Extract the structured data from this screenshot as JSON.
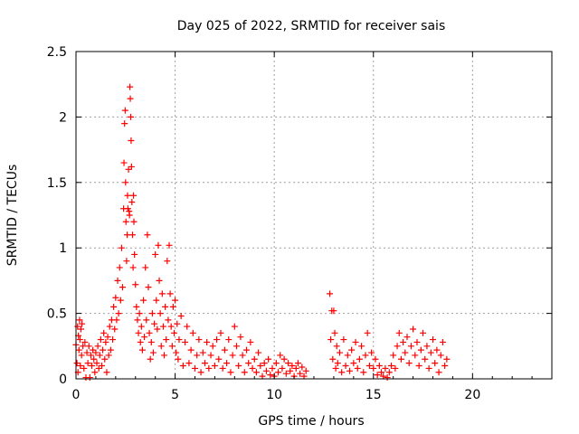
{
  "chart_data": {
    "type": "scatter",
    "title": "Day 025 of 2022, SRMTID for receiver sais",
    "xlabel": "GPS time / hours",
    "ylabel": "SRMTID / TECUs",
    "xlim": [
      0,
      24
    ],
    "ylim": [
      0,
      2.5
    ],
    "xticks": [
      0,
      5,
      10,
      15,
      20
    ],
    "xtick_labels": [
      "0",
      "5",
      "10",
      "15",
      "20"
    ],
    "yticks": [
      0,
      0.5,
      1,
      1.5,
      2,
      2.5
    ],
    "ytick_labels": [
      "0",
      "0.5",
      "1",
      "1.5",
      "2",
      "2.5"
    ],
    "grid": true,
    "series": [
      {
        "name": "SRMTID",
        "marker": "+",
        "color": "#ff0000",
        "points": [
          [
            0.0,
            0.26
          ],
          [
            0.05,
            0.12
          ],
          [
            0.08,
            0.4
          ],
          [
            0.1,
            0.05
          ],
          [
            0.12,
            0.33
          ],
          [
            0.15,
            0.22
          ],
          [
            0.18,
            0.45
          ],
          [
            0.2,
            0.3
          ],
          [
            0.22,
            0.1
          ],
          [
            0.25,
            0.38
          ],
          [
            0.28,
            0.18
          ],
          [
            0.3,
            0.42
          ],
          [
            0.35,
            0.25
          ],
          [
            0.4,
            0.08
          ],
          [
            0.45,
            0.28
          ],
          [
            0.5,
            0.01
          ],
          [
            0.55,
            0.2
          ],
          [
            0.6,
            0.12
          ],
          [
            0.65,
            0.25
          ],
          [
            0.7,
            0.01
          ],
          [
            0.75,
            0.18
          ],
          [
            0.8,
            0.1
          ],
          [
            0.85,
            0.22
          ],
          [
            0.9,
            0.15
          ],
          [
            0.95,
            0.05
          ],
          [
            1.0,
            0.2
          ],
          [
            1.05,
            0.12
          ],
          [
            1.1,
            0.25
          ],
          [
            1.15,
            0.08
          ],
          [
            1.2,
            0.18
          ],
          [
            1.25,
            0.3
          ],
          [
            1.3,
            0.1
          ],
          [
            1.35,
            0.22
          ],
          [
            1.4,
            0.35
          ],
          [
            1.45,
            0.15
          ],
          [
            1.5,
            0.28
          ],
          [
            1.55,
            0.05
          ],
          [
            1.6,
            0.32
          ],
          [
            1.65,
            0.18
          ],
          [
            1.7,
            0.4
          ],
          [
            1.75,
            0.22
          ],
          [
            1.8,
            0.45
          ],
          [
            1.85,
            0.3
          ],
          [
            1.9,
            0.55
          ],
          [
            1.95,
            0.38
          ],
          [
            2.0,
            0.62
          ],
          [
            2.05,
            0.45
          ],
          [
            2.1,
            0.75
          ],
          [
            2.15,
            0.5
          ],
          [
            2.2,
            0.85
          ],
          [
            2.25,
            0.6
          ],
          [
            2.3,
            1.0
          ],
          [
            2.35,
            0.7
          ],
          [
            2.4,
            1.3
          ],
          [
            2.42,
            1.65
          ],
          [
            2.45,
            1.95
          ],
          [
            2.48,
            2.05
          ],
          [
            2.5,
            1.5
          ],
          [
            2.52,
            1.2
          ],
          [
            2.55,
            0.9
          ],
          [
            2.58,
            1.1
          ],
          [
            2.6,
            1.4
          ],
          [
            2.62,
            1.3
          ],
          [
            2.65,
            1.6
          ],
          [
            2.68,
            1.28
          ],
          [
            2.7,
            1.25
          ],
          [
            2.72,
            2.23
          ],
          [
            2.74,
            2.14
          ],
          [
            2.76,
            2.0
          ],
          [
            2.78,
            1.82
          ],
          [
            2.8,
            1.62
          ],
          [
            2.82,
            1.35
          ],
          [
            2.85,
            1.1
          ],
          [
            2.88,
            0.85
          ],
          [
            2.9,
            1.4
          ],
          [
            2.92,
            1.2
          ],
          [
            2.95,
            0.95
          ],
          [
            3.0,
            0.72
          ],
          [
            3.05,
            0.55
          ],
          [
            3.1,
            0.45
          ],
          [
            3.15,
            0.35
          ],
          [
            3.2,
            0.5
          ],
          [
            3.25,
            0.28
          ],
          [
            3.3,
            0.4
          ],
          [
            3.35,
            0.22
          ],
          [
            3.4,
            0.6
          ],
          [
            3.45,
            0.32
          ],
          [
            3.5,
            0.85
          ],
          [
            3.55,
            0.45
          ],
          [
            3.6,
            1.1
          ],
          [
            3.65,
            0.7
          ],
          [
            3.7,
            0.35
          ],
          [
            3.75,
            0.15
          ],
          [
            3.8,
            0.28
          ],
          [
            3.85,
            0.5
          ],
          [
            3.9,
            0.2
          ],
          [
            3.95,
            0.42
          ],
          [
            4.0,
            0.95
          ],
          [
            4.05,
            0.6
          ],
          [
            4.1,
            0.38
          ],
          [
            4.15,
            1.02
          ],
          [
            4.2,
            0.75
          ],
          [
            4.25,
            0.5
          ],
          [
            4.3,
            0.25
          ],
          [
            4.35,
            0.65
          ],
          [
            4.4,
            0.4
          ],
          [
            4.45,
            0.18
          ],
          [
            4.5,
            0.55
          ],
          [
            4.55,
            0.3
          ],
          [
            4.6,
            0.9
          ],
          [
            4.65,
            0.45
          ],
          [
            4.7,
            1.02
          ],
          [
            4.75,
            0.65
          ],
          [
            4.8,
            0.4
          ],
          [
            4.85,
            0.25
          ],
          [
            4.9,
            0.55
          ],
          [
            4.95,
            0.35
          ],
          [
            5.0,
            0.6
          ],
          [
            5.05,
            0.2
          ],
          [
            5.1,
            0.42
          ],
          [
            5.15,
            0.15
          ],
          [
            5.2,
            0.3
          ],
          [
            5.3,
            0.48
          ],
          [
            5.4,
            0.1
          ],
          [
            5.5,
            0.28
          ],
          [
            5.6,
            0.4
          ],
          [
            5.7,
            0.12
          ],
          [
            5.8,
            0.22
          ],
          [
            5.9,
            0.35
          ],
          [
            6.0,
            0.08
          ],
          [
            6.1,
            0.18
          ],
          [
            6.2,
            0.3
          ],
          [
            6.3,
            0.05
          ],
          [
            6.4,
            0.2
          ],
          [
            6.5,
            0.12
          ],
          [
            6.6,
            0.28
          ],
          [
            6.7,
            0.08
          ],
          [
            6.8,
            0.18
          ],
          [
            6.9,
            0.25
          ],
          [
            7.0,
            0.1
          ],
          [
            7.1,
            0.3
          ],
          [
            7.2,
            0.15
          ],
          [
            7.3,
            0.35
          ],
          [
            7.4,
            0.08
          ],
          [
            7.5,
            0.22
          ],
          [
            7.6,
            0.12
          ],
          [
            7.7,
            0.3
          ],
          [
            7.8,
            0.05
          ],
          [
            7.9,
            0.18
          ],
          [
            8.0,
            0.4
          ],
          [
            8.1,
            0.25
          ],
          [
            8.2,
            0.1
          ],
          [
            8.3,
            0.32
          ],
          [
            8.4,
            0.18
          ],
          [
            8.5,
            0.05
          ],
          [
            8.6,
            0.22
          ],
          [
            8.7,
            0.12
          ],
          [
            8.8,
            0.28
          ],
          [
            8.9,
            0.08
          ],
          [
            9.0,
            0.15
          ],
          [
            9.1,
            0.05
          ],
          [
            9.2,
            0.2
          ],
          [
            9.3,
            0.1
          ],
          [
            9.4,
            0.02
          ],
          [
            9.5,
            0.12
          ],
          [
            9.6,
            0.06
          ],
          [
            9.7,
            0.15
          ],
          [
            9.8,
            0.03
          ],
          [
            9.9,
            0.08
          ],
          [
            10.0,
            0.02
          ],
          [
            10.1,
            0.12
          ],
          [
            10.2,
            0.05
          ],
          [
            10.3,
            0.18
          ],
          [
            10.4,
            0.08
          ],
          [
            10.5,
            0.15
          ],
          [
            10.6,
            0.04
          ],
          [
            10.7,
            0.12
          ],
          [
            10.8,
            0.06
          ],
          [
            10.9,
            0.1
          ],
          [
            11.0,
            0.02
          ],
          [
            11.1,
            0.08
          ],
          [
            11.2,
            0.12
          ],
          [
            11.3,
            0.04
          ],
          [
            11.4,
            0.09
          ],
          [
            11.5,
            0.02
          ],
          [
            11.6,
            0.06
          ],
          [
            12.8,
            0.65
          ],
          [
            12.85,
            0.3
          ],
          [
            12.9,
            0.52
          ],
          [
            12.95,
            0.15
          ],
          [
            13.0,
            0.52
          ],
          [
            13.05,
            0.35
          ],
          [
            13.1,
            0.08
          ],
          [
            13.15,
            0.25
          ],
          [
            13.2,
            0.12
          ],
          [
            13.3,
            0.2
          ],
          [
            13.4,
            0.05
          ],
          [
            13.5,
            0.3
          ],
          [
            13.6,
            0.1
          ],
          [
            13.7,
            0.18
          ],
          [
            13.8,
            0.06
          ],
          [
            13.9,
            0.22
          ],
          [
            14.0,
            0.12
          ],
          [
            14.1,
            0.28
          ],
          [
            14.2,
            0.08
          ],
          [
            14.3,
            0.15
          ],
          [
            14.4,
            0.25
          ],
          [
            14.5,
            0.05
          ],
          [
            14.6,
            0.18
          ],
          [
            14.7,
            0.35
          ],
          [
            14.8,
            0.1
          ],
          [
            14.9,
            0.2
          ],
          [
            15.0,
            0.08
          ],
          [
            15.1,
            0.15
          ],
          [
            15.2,
            0.03
          ],
          [
            15.3,
            0.1
          ],
          [
            15.4,
            0.05
          ],
          [
            15.5,
            0.02
          ],
          [
            15.6,
            0.08
          ],
          [
            15.7,
            0.01
          ],
          [
            15.8,
            0.05
          ],
          [
            15.9,
            0.1
          ],
          [
            16.0,
            0.18
          ],
          [
            16.1,
            0.08
          ],
          [
            16.2,
            0.25
          ],
          [
            16.3,
            0.35
          ],
          [
            16.4,
            0.15
          ],
          [
            16.5,
            0.28
          ],
          [
            16.6,
            0.2
          ],
          [
            16.7,
            0.32
          ],
          [
            16.8,
            0.12
          ],
          [
            16.9,
            0.25
          ],
          [
            17.0,
            0.38
          ],
          [
            17.1,
            0.18
          ],
          [
            17.2,
            0.28
          ],
          [
            17.3,
            0.1
          ],
          [
            17.4,
            0.22
          ],
          [
            17.5,
            0.35
          ],
          [
            17.6,
            0.15
          ],
          [
            17.7,
            0.25
          ],
          [
            17.8,
            0.08
          ],
          [
            17.9,
            0.2
          ],
          [
            18.0,
            0.3
          ],
          [
            18.1,
            0.12
          ],
          [
            18.2,
            0.22
          ],
          [
            18.3,
            0.05
          ],
          [
            18.4,
            0.18
          ],
          [
            18.5,
            0.28
          ],
          [
            18.6,
            0.1
          ],
          [
            18.7,
            0.15
          ]
        ]
      }
    ]
  }
}
